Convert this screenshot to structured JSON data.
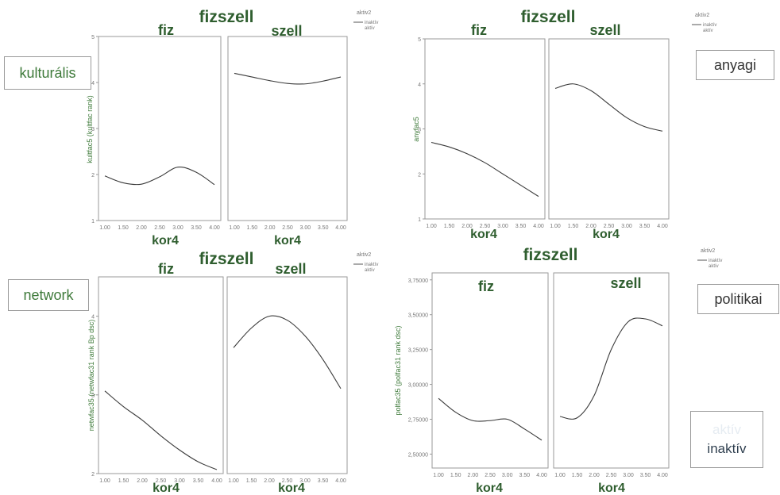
{
  "side_labels": {
    "kulturalis": "kulturális",
    "anyagi": "anyagi",
    "network": "network",
    "politikai": "politikai",
    "aktiv": "aktív",
    "inaktiv": "inaktív"
  },
  "colors": {
    "line": "#3a3a3a",
    "frame": "#9a9a9a",
    "label_green": "#3e7a3a",
    "title_green": "#2f5e2f"
  },
  "chart_data": [
    {
      "id": "kulturalis",
      "type": "line",
      "title": "fizszell",
      "panels": [
        "fiz",
        "szell"
      ],
      "xlabel": "kor4",
      "ylabel": "kultfac5 (kultfac rank)",
      "legend": {
        "title": "aktiv2",
        "entries": [
          "inaktív",
          "aktív"
        ]
      },
      "xlim": [
        1,
        4
      ],
      "x_ticks": [
        "1.00",
        "1.50",
        "2.00",
        "2.50",
        "3.00",
        "3.50",
        "4.00"
      ],
      "ylim": [
        1,
        5
      ],
      "y_ticks": [
        "1",
        "2",
        "3",
        "4",
        "5"
      ],
      "series": [
        {
          "panel": "fiz",
          "x": [
            1.0,
            1.5,
            2.0,
            2.5,
            3.0,
            3.5,
            4.0
          ],
          "y": [
            1.97,
            1.82,
            1.79,
            1.95,
            2.16,
            2.05,
            1.78
          ]
        },
        {
          "panel": "szell",
          "x": [
            1.0,
            1.5,
            2.0,
            2.5,
            3.0,
            3.5,
            4.0
          ],
          "y": [
            4.2,
            4.12,
            4.04,
            3.98,
            3.97,
            4.03,
            4.12
          ]
        }
      ]
    },
    {
      "id": "anyagi",
      "type": "line",
      "title": "fizszell",
      "panels": [
        "fiz",
        "szell"
      ],
      "xlabel": "kor4",
      "ylabel": "anyfac5",
      "legend": {
        "title": "aktiv2",
        "entries": [
          "inaktív",
          "aktív"
        ]
      },
      "xlim": [
        1,
        4
      ],
      "x_ticks": [
        "1.00",
        "1.50",
        "2.00",
        "2.50",
        "3.00",
        "3.50",
        "4.00"
      ],
      "ylim": [
        1,
        5
      ],
      "y_ticks": [
        "1",
        "2",
        "3",
        "4",
        "5"
      ],
      "series": [
        {
          "panel": "fiz",
          "x": [
            1.0,
            1.5,
            2.0,
            2.5,
            3.0,
            3.5,
            4.0
          ],
          "y": [
            2.7,
            2.6,
            2.45,
            2.25,
            2.0,
            1.75,
            1.5
          ]
        },
        {
          "panel": "szell",
          "x": [
            1.0,
            1.5,
            2.0,
            2.5,
            3.0,
            3.5,
            4.0
          ],
          "y": [
            3.9,
            4.0,
            3.85,
            3.55,
            3.25,
            3.05,
            2.95
          ]
        }
      ]
    },
    {
      "id": "network",
      "type": "line",
      "title": "fizszell",
      "panels": [
        "fiz",
        "szell"
      ],
      "xlabel": "kor4",
      "ylabel": "netwfac35 (netwfac31 rank Bp dsc)",
      "legend": {
        "title": "aktiv2",
        "entries": [
          "inaktív",
          "aktív"
        ]
      },
      "xlim": [
        1,
        4
      ],
      "x_ticks": [
        "1.00",
        "1.50",
        "2.00",
        "2.50",
        "3.00",
        "3.50",
        "4.00"
      ],
      "ylim": [
        2,
        4.5
      ],
      "y_ticks": [
        "2",
        "3",
        "4"
      ],
      "series": [
        {
          "panel": "fiz",
          "x": [
            1.0,
            1.5,
            2.0,
            2.5,
            3.0,
            3.5,
            4.0
          ],
          "y": [
            3.05,
            2.85,
            2.68,
            2.48,
            2.3,
            2.15,
            2.05
          ]
        },
        {
          "panel": "szell",
          "x": [
            1.0,
            1.5,
            2.0,
            2.5,
            3.0,
            3.5,
            4.0
          ],
          "y": [
            3.6,
            3.85,
            4.0,
            3.95,
            3.75,
            3.45,
            3.08
          ]
        }
      ]
    },
    {
      "id": "politikai",
      "type": "line",
      "title": "fizszell",
      "panels": [
        "fiz",
        "szell"
      ],
      "xlabel": "kor4",
      "ylabel": "polfac35 (polfac31 rank dsc)",
      "legend": {
        "title": "aktiv2",
        "entries": [
          "inaktív",
          "aktív"
        ]
      },
      "xlim": [
        1,
        4
      ],
      "x_ticks": [
        "1.00",
        "1.50",
        "2.00",
        "2.50",
        "3.00",
        "3.50",
        "4.00"
      ],
      "ylim": [
        2.4,
        3.8
      ],
      "y_ticks": [
        "2,50000",
        "2,75000",
        "3,00000",
        "3,25000",
        "3,50000",
        "3,75000"
      ],
      "y_tick_values": [
        2.5,
        2.75,
        3.0,
        3.25,
        3.5,
        3.75
      ],
      "series": [
        {
          "panel": "fiz",
          "x": [
            1.0,
            1.5,
            2.0,
            2.5,
            3.0,
            3.5,
            4.0
          ],
          "y": [
            2.9,
            2.8,
            2.74,
            2.74,
            2.75,
            2.68,
            2.6
          ]
        },
        {
          "panel": "szell",
          "x": [
            1.0,
            1.5,
            2.0,
            2.5,
            3.0,
            3.5,
            4.0
          ],
          "y": [
            2.77,
            2.76,
            2.92,
            3.25,
            3.45,
            3.47,
            3.42
          ]
        }
      ]
    }
  ]
}
